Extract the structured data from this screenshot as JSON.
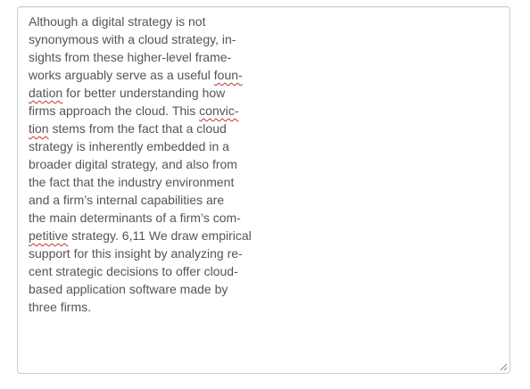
{
  "textarea": {
    "lines": [
      [
        {
          "t": "Although a digital strategy is not"
        }
      ],
      [
        {
          "t": "synonymous with a cloud strategy, in-"
        }
      ],
      [
        {
          "t": "sights from these higher-level frame-"
        }
      ],
      [
        {
          "t": "works arguably serve as a useful "
        },
        {
          "t": "foun-",
          "spell": true
        }
      ],
      [
        {
          "t": "dation",
          "spell": true
        },
        {
          "t": " for better understanding how"
        }
      ],
      [
        {
          "t": "firms approach the cloud. This "
        },
        {
          "t": "convic-",
          "spell": true
        }
      ],
      [
        {
          "t": "tion",
          "spell": true
        },
        {
          "t": " stems from the fact that a cloud"
        }
      ],
      [
        {
          "t": "strategy is inherently embedded in a"
        }
      ],
      [
        {
          "t": "broader digital strategy, and also from"
        }
      ],
      [
        {
          "t": "the fact that the industry environment"
        }
      ],
      [
        {
          "t": "and a firm’s internal capabilities are"
        }
      ],
      [
        {
          "t": "the main determinants of a firm’s com-"
        }
      ],
      [
        {
          "t": "petitive",
          "spell": true
        },
        {
          "t": " strategy. 6,11 We draw empirical"
        }
      ],
      [
        {
          "t": "support for this insight by analyzing re-"
        }
      ],
      [
        {
          "t": "cent strategic decisions to offer cloud-"
        }
      ],
      [
        {
          "t": "based application software made by"
        }
      ],
      [
        {
          "t": "three firms."
        }
      ]
    ]
  },
  "icons": {
    "resize": "resize-grip-icon"
  }
}
